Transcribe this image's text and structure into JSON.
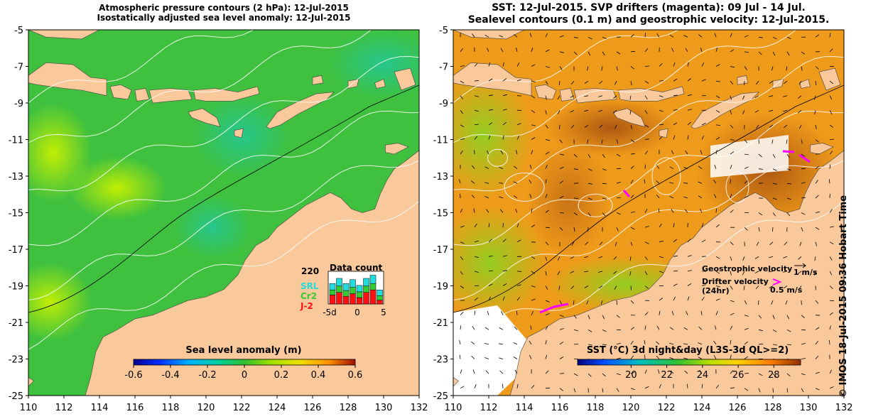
{
  "left_panel": {
    "title_line1": "Atmospheric pressure contours (2 hPa): 12-Jul-2015",
    "title_line2": "Isostatically adjusted sea level anomaly: 12-Jul-2015",
    "x_ticks": [
      "110",
      "112",
      "114",
      "116",
      "118",
      "120",
      "122",
      "124",
      "126",
      "128",
      "130",
      "132"
    ],
    "y_ticks": [
      "-5",
      "-7",
      "-9",
      "-11",
      "-13",
      "-15",
      "-17",
      "-19",
      "-21",
      "-23",
      "-25"
    ],
    "colorbar": {
      "label": "Sea level anomaly (m)",
      "ticks": [
        "-0.6",
        "-0.4",
        "-0.2",
        "0",
        "0.2",
        "0.4",
        "0.6"
      ],
      "range": [
        -0.6,
        0.6
      ]
    },
    "inset": {
      "title": "Data count",
      "ymax_label": "220",
      "x_ticks": [
        "-5d",
        "0",
        "5"
      ],
      "legend": [
        {
          "label": "SRL",
          "color": "#22dddd"
        },
        {
          "label": "Cr2",
          "color": "#33cc33"
        },
        {
          "label": "J-2",
          "color": "#ff1111"
        }
      ]
    }
  },
  "right_panel": {
    "title_line1": "SST: 12-Jul-2015. SVP drifters (magenta): 09 Jul - 14 Jul.",
    "title_line2": "Sealevel contours (0.1 m) and geostrophic velocity: 12-Jul-2015.",
    "x_ticks": [
      "110",
      "112",
      "114",
      "116",
      "118",
      "120",
      "122",
      "124",
      "126",
      "128",
      "130",
      "132"
    ],
    "y_ticks": [
      "-5",
      "-7",
      "-9",
      "-11",
      "-13",
      "-15",
      "-17",
      "-19",
      "-21",
      "-23",
      "-25"
    ],
    "colorbar": {
      "label": "SST (°C) 3d night&day (L3S-3d QL>=2)",
      "ticks": [
        "20",
        "22",
        "24",
        "26",
        "28"
      ],
      "range": [
        17,
        29.5
      ]
    },
    "legend": {
      "geo_label": "Geostrophic velocity",
      "geo_scale": "1 m/s",
      "drifter_label_line1": "Drifter velocity",
      "drifter_label_line2": "(24hr)",
      "drifter_scale": "0.5 m/s"
    }
  },
  "credit": "© IMOS 18-Jul-2015 09:36 Hobart Time",
  "colors": {
    "land": "#f9c89b",
    "ocean_base": "#3fc13f",
    "sst_base": "#ee9a1a",
    "drifter": "#ff00ff",
    "contour": "#ffffff"
  }
}
